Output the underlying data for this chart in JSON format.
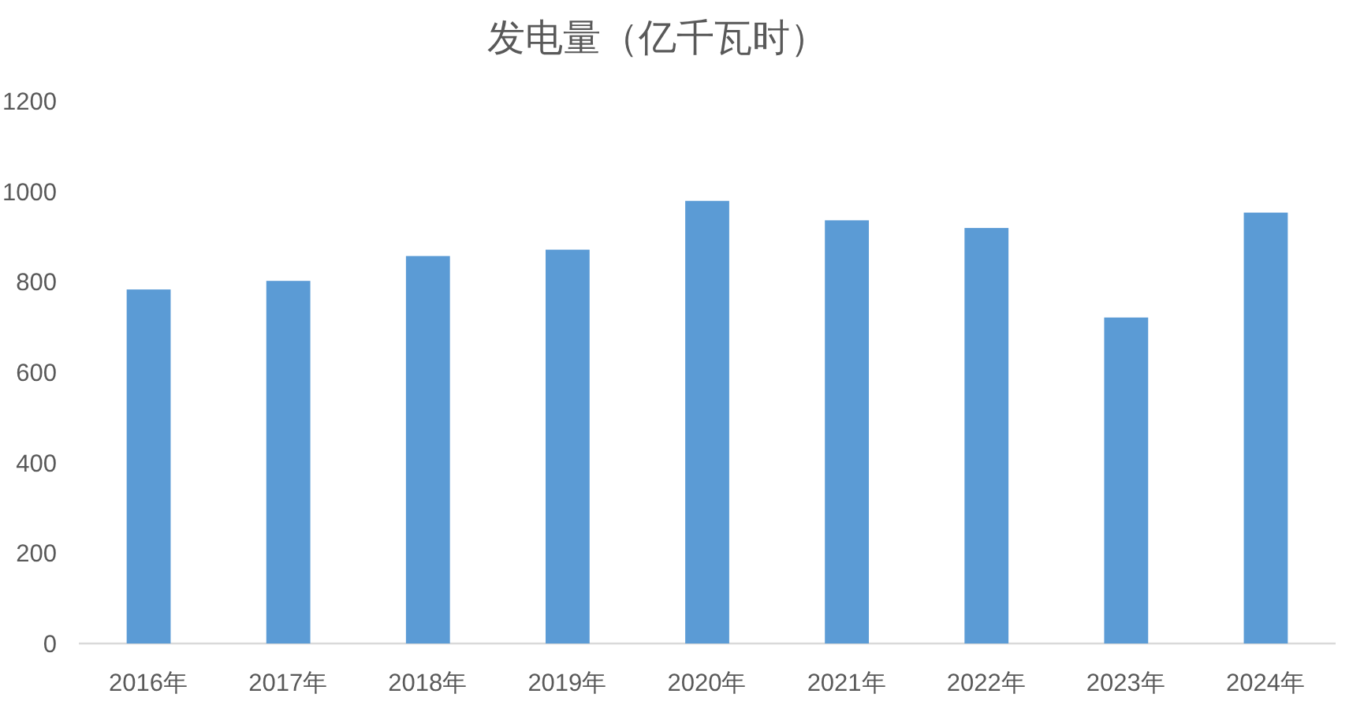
{
  "chart_data": {
    "type": "bar",
    "title": "发电量（亿千瓦时）",
    "categories": [
      "2016年",
      "2017年",
      "2018年",
      "2019年",
      "2020年",
      "2021年",
      "2022年",
      "2023年",
      "2024年"
    ],
    "values": [
      783,
      802,
      857,
      871,
      979,
      936,
      919,
      721,
      953
    ],
    "color": "#5b9bd5",
    "ylim": [
      0,
      1200
    ],
    "yticks": [
      0,
      200,
      400,
      600,
      800,
      1000,
      1200
    ]
  }
}
